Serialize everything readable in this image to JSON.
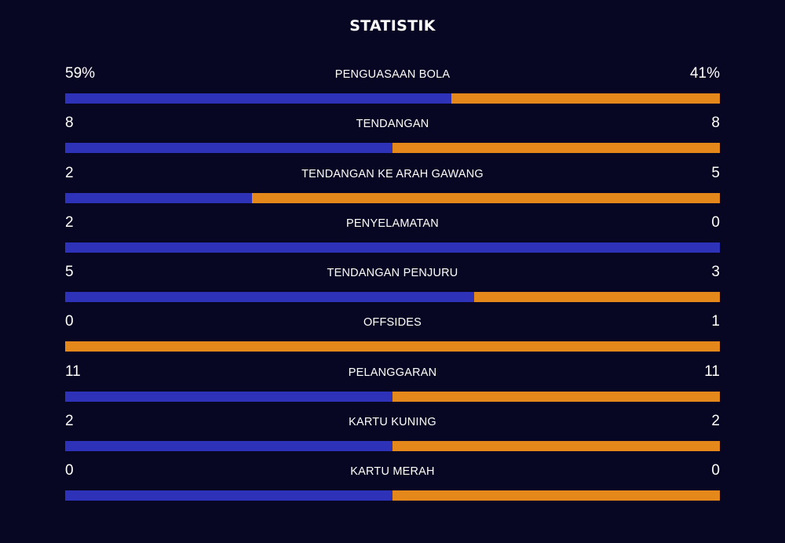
{
  "title": "STATISTIK",
  "colors": {
    "background": "#070724",
    "home_bar": "#2D32B8",
    "away_bar": "#E5881C",
    "text": "#FFFFFF"
  },
  "stats": [
    {
      "name": "PENGUASAAN BOLA",
      "home": "59%",
      "away": "41%",
      "home_fraction": 0.59
    },
    {
      "name": "TENDANGAN",
      "home": "8",
      "away": "8",
      "home_fraction": 0.5
    },
    {
      "name": "TENDANGAN KE ARAH GAWANG",
      "home": "2",
      "away": "5",
      "home_fraction": 0.2857
    },
    {
      "name": "PENYELAMATAN",
      "home": "2",
      "away": "0",
      "home_fraction": 1.0
    },
    {
      "name": "TENDANGAN PENJURU",
      "home": "5",
      "away": "3",
      "home_fraction": 0.625
    },
    {
      "name": "OFFSIDES",
      "home": "0",
      "away": "1",
      "home_fraction": 0.0
    },
    {
      "name": "PELANGGARAN",
      "home": "11",
      "away": "11",
      "home_fraction": 0.5
    },
    {
      "name": "KARTU KUNING",
      "home": "2",
      "away": "2",
      "home_fraction": 0.5
    },
    {
      "name": "KARTU MERAH",
      "home": "0",
      "away": "0",
      "home_fraction": 0.5
    }
  ]
}
